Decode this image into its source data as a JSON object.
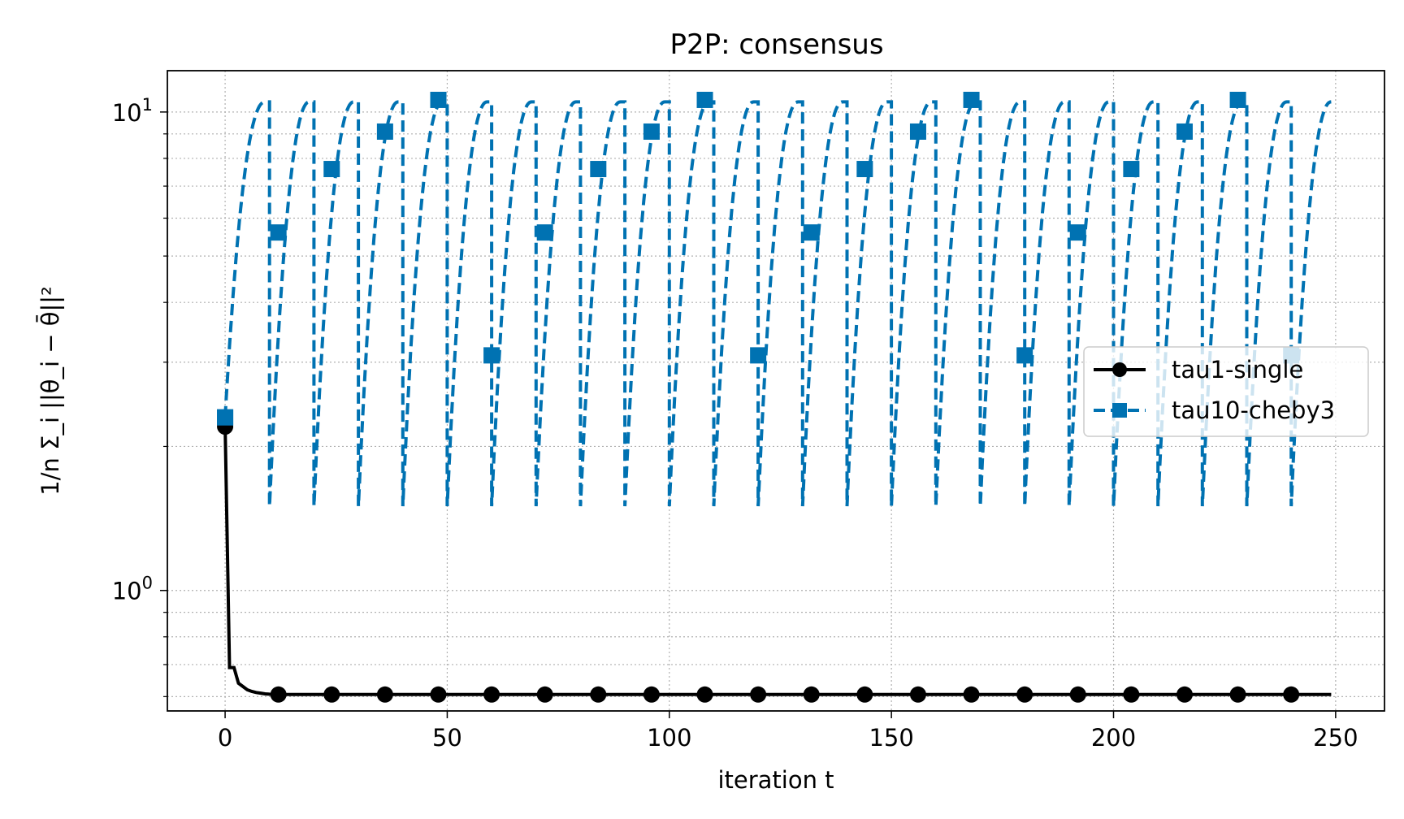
{
  "chart_data": {
    "type": "line",
    "title": "P2P: consensus",
    "xlabel": "iteration t",
    "ylabel": "1/n Σ_i ||θ_i − θ̄||²",
    "xlim": [
      -13,
      261
    ],
    "ylim": [
      0.56,
      12.2
    ],
    "yscale": "log",
    "grid": true,
    "legend_position": "center-right",
    "x_ticks": [
      0,
      50,
      100,
      150,
      200,
      250
    ],
    "y_ticks": [
      {
        "value": 1,
        "base": "10",
        "exp": "0"
      },
      {
        "value": 10,
        "base": "10",
        "exp": "1"
      }
    ],
    "series": [
      {
        "name": "tau1-single",
        "color": "#000000",
        "marker": "circle",
        "linestyle": "solid",
        "x": [
          0,
          1,
          2,
          3,
          4,
          5,
          6,
          7,
          8,
          9,
          10,
          12,
          24,
          36,
          48,
          60,
          72,
          84,
          96,
          108,
          120,
          132,
          144,
          156,
          168,
          180,
          192,
          204,
          216,
          228,
          240,
          249
        ],
        "values": [
          2.2,
          0.69,
          0.69,
          0.64,
          0.63,
          0.62,
          0.615,
          0.612,
          0.61,
          0.608,
          0.607,
          0.606,
          0.606,
          0.606,
          0.606,
          0.606,
          0.606,
          0.606,
          0.606,
          0.606,
          0.606,
          0.606,
          0.606,
          0.606,
          0.606,
          0.606,
          0.606,
          0.606,
          0.606,
          0.606,
          0.606,
          0.606
        ],
        "marker_x": [
          12,
          24,
          36,
          48,
          60,
          72,
          84,
          96,
          108,
          120,
          132,
          144,
          156,
          168,
          180,
          192,
          204,
          216,
          228,
          240
        ]
      },
      {
        "name": "tau10-cheby3",
        "color": "#0072b2",
        "marker": "square",
        "linestyle": "dashed",
        "cycle_period": 10,
        "cycle_start": 0,
        "first_value": 2.3,
        "low_value": 1.5,
        "high_value": 10.5,
        "x_end": 249,
        "marker_x": [
          0,
          12,
          24,
          36,
          48,
          60,
          72,
          84,
          96,
          108,
          120,
          132,
          144,
          156,
          168,
          180,
          192,
          204,
          216,
          228,
          240
        ],
        "marker_values": [
          2.3,
          5.6,
          7.6,
          9.1,
          10.6,
          3.1,
          5.6,
          7.6,
          9.1,
          10.6,
          3.1,
          5.6,
          7.6,
          9.1,
          10.6,
          3.1,
          5.6,
          7.6,
          9.1,
          10.6,
          3.1
        ]
      }
    ]
  }
}
